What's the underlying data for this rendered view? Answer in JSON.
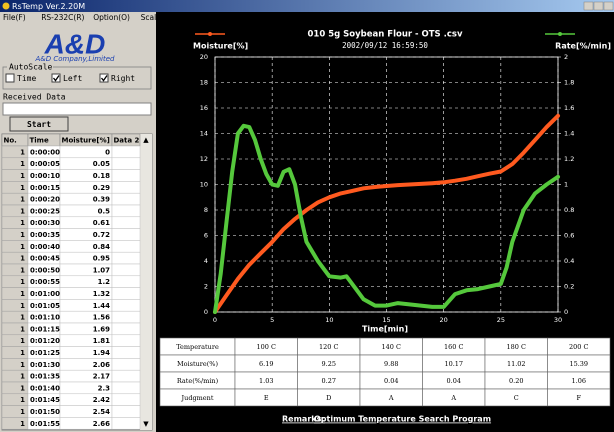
{
  "window": {
    "title": "RsTemp Ver.2.20M",
    "menu": [
      "File(F)",
      "RS-232C(R)",
      "Option(O)",
      "Scale(S)"
    ]
  },
  "logo": {
    "brand": "A&D",
    "company": "A&D Company,Limited"
  },
  "autoscale": {
    "label": "AutoScale",
    "options": [
      {
        "label": "Time",
        "checked": false
      },
      {
        "label": "Left",
        "checked": true
      },
      {
        "label": "Right",
        "checked": true
      }
    ]
  },
  "received_data_label": "Received Data",
  "start_button": "Start",
  "data_table": {
    "columns": [
      "No.",
      "Time",
      "Moisture[%]",
      "Data 2"
    ],
    "rows": [
      [
        "1",
        "0:00:00",
        "0"
      ],
      [
        "1",
        "0:00:05",
        "0.05"
      ],
      [
        "1",
        "0:00:10",
        "0.18"
      ],
      [
        "1",
        "0:00:15",
        "0.29"
      ],
      [
        "1",
        "0:00:20",
        "0.39"
      ],
      [
        "1",
        "0:00:25",
        "0.5"
      ],
      [
        "1",
        "0:00:30",
        "0.61"
      ],
      [
        "1",
        "0:00:35",
        "0.72"
      ],
      [
        "1",
        "0:00:40",
        "0.84"
      ],
      [
        "1",
        "0:00:45",
        "0.95"
      ],
      [
        "1",
        "0:00:50",
        "1.07"
      ],
      [
        "1",
        "0:00:55",
        "1.2"
      ],
      [
        "1",
        "0:01:00",
        "1.32"
      ],
      [
        "1",
        "0:01:05",
        "1.44"
      ],
      [
        "1",
        "0:01:10",
        "1.56"
      ],
      [
        "1",
        "0:01:15",
        "1.69"
      ],
      [
        "1",
        "0:01:20",
        "1.81"
      ],
      [
        "1",
        "0:01:25",
        "1.94"
      ],
      [
        "1",
        "0:01:30",
        "2.06"
      ],
      [
        "1",
        "0:01:35",
        "2.17"
      ],
      [
        "1",
        "0:01:40",
        "2.3"
      ],
      [
        "1",
        "0:01:45",
        "2.42"
      ],
      [
        "1",
        "0:01:50",
        "2.54"
      ],
      [
        "1",
        "0:01:55",
        "2.66"
      ]
    ]
  },
  "chart_data": {
    "type": "line",
    "title": "010 5g Soybean Flour - OTS .csv",
    "subtitle": "2002/09/12 16:59:50",
    "x_label": "Time[min]",
    "y_label": "Moisture[%]",
    "y2_label": "Rate[%/min]",
    "xlim": [
      0,
      30
    ],
    "xticks": [
      0,
      5,
      10,
      15,
      20,
      25,
      30
    ],
    "ylim": [
      0,
      20
    ],
    "yticks": [
      0,
      2,
      4,
      6,
      8,
      10,
      12,
      14,
      16,
      18,
      20
    ],
    "y2lim": [
      0,
      2
    ],
    "y2ticks": [
      0,
      0.2,
      0.4,
      0.6,
      0.8,
      1,
      1.2,
      1.4,
      1.6,
      1.8,
      2
    ],
    "grid": true,
    "series": [
      {
        "name": "Moisture[%]",
        "color": "#ff5a1f",
        "x": [
          0,
          1,
          2,
          3,
          4,
          5,
          6,
          7,
          8,
          9,
          10,
          11,
          12,
          13,
          14,
          15,
          16,
          17,
          18,
          19,
          20,
          21,
          22,
          23,
          24,
          25,
          26,
          27,
          28,
          29,
          30
        ],
        "values": [
          0,
          1.3,
          2.6,
          3.7,
          4.6,
          5.5,
          6.5,
          7.3,
          8.0,
          8.6,
          9.0,
          9.3,
          9.5,
          9.7,
          9.8,
          9.88,
          9.95,
          10.0,
          10.05,
          10.1,
          10.17,
          10.3,
          10.45,
          10.65,
          10.85,
          11.02,
          11.6,
          12.5,
          13.5,
          14.5,
          15.39
        ]
      },
      {
        "name": "Rate[%/min]",
        "color": "#55c83c",
        "axis": "y2",
        "x": [
          0,
          0.5,
          1,
          1.5,
          2,
          2.5,
          3,
          3.5,
          4,
          4.5,
          5,
          5.5,
          6,
          6.5,
          7,
          7.5,
          8,
          9,
          10,
          11,
          11.5,
          12,
          13,
          14,
          15,
          16,
          17,
          18,
          19,
          20,
          21,
          22,
          23,
          24,
          25,
          25.5,
          26,
          27,
          28,
          29,
          30
        ],
        "values": [
          0,
          0.3,
          0.7,
          1.1,
          1.4,
          1.46,
          1.45,
          1.35,
          1.2,
          1.08,
          1.0,
          0.99,
          1.1,
          1.12,
          1.0,
          0.75,
          0.55,
          0.4,
          0.28,
          0.27,
          0.28,
          0.22,
          0.1,
          0.05,
          0.05,
          0.07,
          0.06,
          0.05,
          0.04,
          0.04,
          0.14,
          0.17,
          0.18,
          0.2,
          0.22,
          0.35,
          0.55,
          0.8,
          0.93,
          1.0,
          1.06
        ]
      }
    ]
  },
  "summary_table": {
    "rows": [
      [
        "Temperature",
        "100 C",
        "120 C",
        "140 C",
        "160 C",
        "180 C",
        "200 C"
      ],
      [
        "Moisture(%)",
        "6.19",
        "9.25",
        "9.88",
        "10.17",
        "11.02",
        "15.39"
      ],
      [
        "Rate(%/min)",
        "1.03",
        "0.27",
        "0.04",
        "0.04",
        "0.20",
        "1.06"
      ],
      [
        "Judgment",
        "E",
        "D",
        "A",
        "A",
        "C",
        "F"
      ]
    ]
  },
  "remarks": {
    "label": "Remarks:",
    "text": "Optimum Temperature Search Program"
  }
}
